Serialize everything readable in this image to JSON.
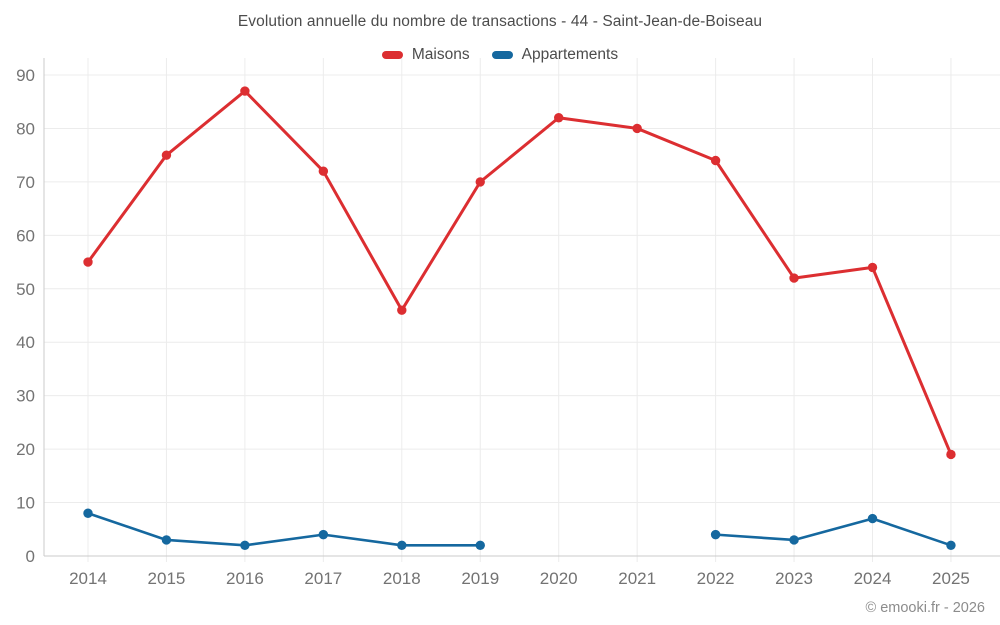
{
  "chart_data": {
    "type": "line",
    "title": "Evolution annuelle du nombre de transactions - 44 - Saint-Jean-de-Boiseau",
    "x": [
      "2014",
      "2015",
      "2016",
      "2017",
      "2018",
      "2019",
      "2020",
      "2021",
      "2022",
      "2023",
      "2024",
      "2025"
    ],
    "series": [
      {
        "name": "Maisons",
        "color": "#dc2e31",
        "values": [
          55,
          75,
          87,
          72,
          46,
          70,
          82,
          80,
          74,
          52,
          54,
          19
        ]
      },
      {
        "name": "Appartements",
        "color": "#15689f",
        "values": [
          8,
          3,
          2,
          4,
          2,
          2,
          null,
          null,
          4,
          3,
          7,
          2
        ]
      }
    ],
    "ylim": [
      0,
      90
    ],
    "ytick_step": 10,
    "yticks": [
      0,
      10,
      20,
      30,
      40,
      50,
      60,
      70,
      80,
      90
    ],
    "grid": true,
    "legend_position": "top"
  },
  "footer": {
    "copyright": "© emooki.fr - 2026"
  },
  "colors": {
    "grid": "#ececec",
    "axis": "#cbcbcb",
    "tick_label": "#737373",
    "title_text": "#4c4c4c",
    "footer_text": "#8c8c8c"
  }
}
